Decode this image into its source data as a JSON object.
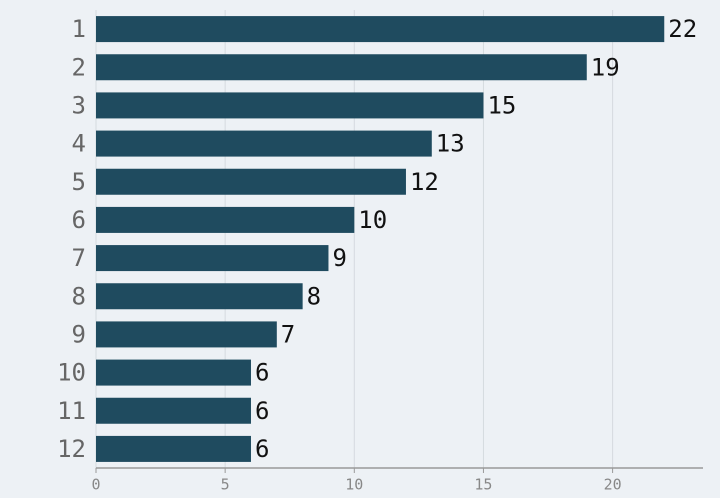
{
  "chart_data": {
    "type": "bar",
    "orientation": "horizontal",
    "categories": [
      "1",
      "2",
      "3",
      "4",
      "5",
      "6",
      "7",
      "8",
      "9",
      "10",
      "11",
      "12"
    ],
    "values": [
      22,
      19,
      15,
      13,
      12,
      10,
      9,
      8,
      7,
      6,
      6,
      6
    ],
    "color": "#1f4b5f",
    "xlim": [
      0,
      23.5
    ],
    "xticks": [
      0,
      5,
      10,
      15,
      20
    ],
    "grid": true
  }
}
